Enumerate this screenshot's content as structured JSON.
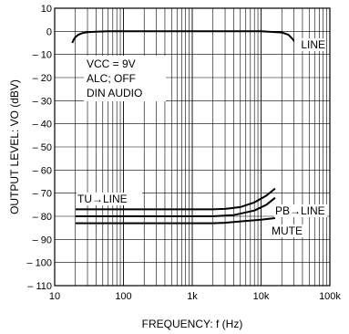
{
  "chart_data": {
    "type": "line",
    "x_scale": "log",
    "xlim": [
      10,
      100000
    ],
    "ylim": [
      -110,
      10
    ],
    "xlabel": "FREQUENCY: f (Hz)",
    "ylabel": "OUTPUT LEVEL: VO (dBV)",
    "x_ticks": [
      {
        "value": 10,
        "label": "10"
      },
      {
        "value": 100,
        "label": "100"
      },
      {
        "value": 1000,
        "label": "1k"
      },
      {
        "value": 10000,
        "label": "10k"
      },
      {
        "value": 100000,
        "label": "100k"
      }
    ],
    "y_ticks": [
      {
        "value": 10,
        "label": "10"
      },
      {
        "value": 0,
        "label": "0"
      },
      {
        "value": -10,
        "label": "– 10"
      },
      {
        "value": -20,
        "label": "– 20"
      },
      {
        "value": -30,
        "label": "– 30"
      },
      {
        "value": -40,
        "label": "– 40"
      },
      {
        "value": -50,
        "label": "– 50"
      },
      {
        "value": -60,
        "label": "– 60"
      },
      {
        "value": -70,
        "label": "– 70"
      },
      {
        "value": -80,
        "label": "– 80"
      },
      {
        "value": -90,
        "label": "– 90"
      },
      {
        "value": -100,
        "label": "– 100"
      },
      {
        "value": -110,
        "label": "– 110"
      }
    ],
    "grid": true,
    "conditions": [
      "VCC = 9V",
      "ALC; OFF",
      "DIN AUDIO"
    ],
    "series": [
      {
        "name": "LINE",
        "x": [
          18,
          19,
          20,
          22,
          25,
          30,
          40,
          60,
          100,
          1000,
          10000,
          20000,
          25000,
          28000,
          32000
        ],
        "y": [
          -5,
          -3.5,
          -2.5,
          -1.5,
          -0.8,
          -0.4,
          -0.2,
          0,
          0,
          0,
          0,
          -0.5,
          -1.5,
          -3,
          -5
        ]
      },
      {
        "name": "TU→LINE",
        "x": [
          20,
          100,
          1000,
          2000,
          3000,
          5000,
          8000,
          12000,
          16000
        ],
        "y": [
          -77,
          -77,
          -77,
          -77,
          -76.8,
          -76,
          -74,
          -71,
          -68
        ]
      },
      {
        "name": "PB→LINE",
        "x": [
          20,
          100,
          1000,
          2000,
          4000,
          8000,
          12000,
          16000
        ],
        "y": [
          -80,
          -80,
          -80,
          -80,
          -79.5,
          -77.5,
          -75,
          -72
        ]
      },
      {
        "name": "MUTE",
        "x": [
          20,
          100,
          1000,
          2000,
          3000,
          5000,
          10000,
          16000
        ],
        "y": [
          -83,
          -83,
          -83,
          -83,
          -82.8,
          -82.2,
          -81.5,
          -80.8
        ]
      }
    ],
    "series_labels": {
      "LINE": "LINE",
      "TU→LINE": "TU→LINE",
      "PB→LINE": "PB→LINE",
      "MUTE": "MUTE"
    }
  }
}
